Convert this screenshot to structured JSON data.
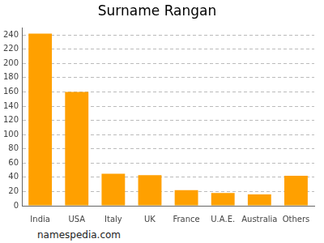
{
  "chart_data": {
    "type": "bar",
    "title": "Surname Rangan",
    "categories": [
      "India",
      "USA",
      "Italy",
      "UK",
      "France",
      "U.A.E.",
      "Australia",
      "Others"
    ],
    "values": [
      242,
      160,
      45,
      43,
      22,
      18,
      16,
      42
    ],
    "color": "#ffa000",
    "ylim": [
      0,
      250
    ],
    "yticks": [
      0,
      20,
      40,
      60,
      80,
      100,
      120,
      140,
      160,
      180,
      200,
      220,
      240
    ],
    "grid": true,
    "annotation": "namespedia.com"
  }
}
